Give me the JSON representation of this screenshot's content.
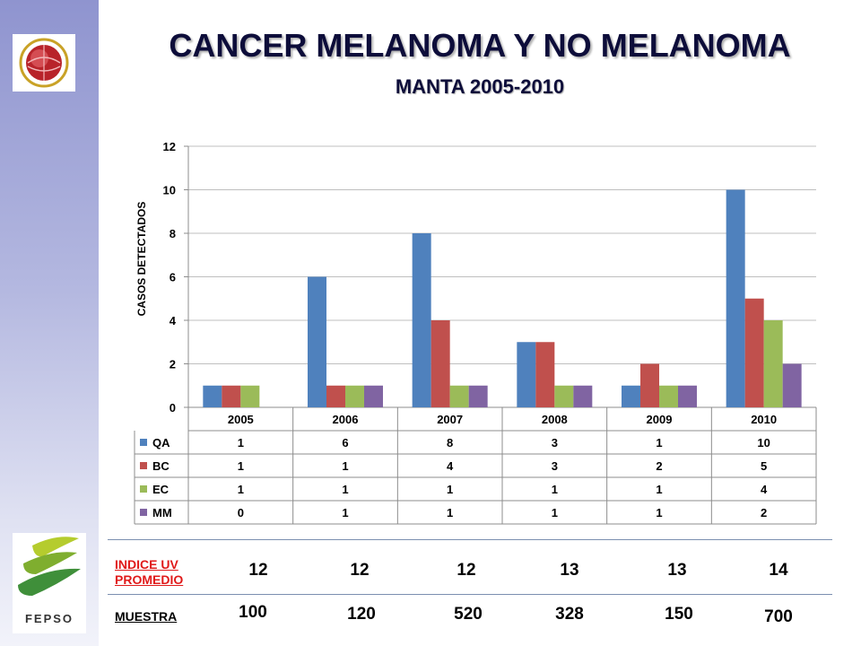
{
  "header": {
    "title": "CANCER MELANOMA Y NO MELANOMA",
    "subtitle": "MANTA 2005-2010"
  },
  "logos": {
    "bottom_text": "FEPSO"
  },
  "colors": {
    "QA": "#4f81bd",
    "BC": "#c0504d",
    "EC": "#9bbb59",
    "MM": "#8064a2",
    "title": "#0d0d3a",
    "index_label": "#e01a1a"
  },
  "chart_data": {
    "type": "bar",
    "title": "",
    "ylabel": "CASOS  DETECTADOS",
    "xlabel": "",
    "ylim": [
      0,
      12
    ],
    "yticks": [
      0,
      2,
      4,
      6,
      8,
      10,
      12
    ],
    "grid": true,
    "legend": "data-table",
    "categories": [
      "2005",
      "2006",
      "2007",
      "2008",
      "2009",
      "2010"
    ],
    "series": [
      {
        "name": "QA",
        "values": [
          1,
          6,
          8,
          3,
          1,
          10
        ]
      },
      {
        "name": "BC",
        "values": [
          1,
          1,
          4,
          3,
          2,
          5
        ]
      },
      {
        "name": "EC",
        "values": [
          1,
          1,
          1,
          1,
          1,
          4
        ]
      },
      {
        "name": "MM",
        "values": [
          0,
          1,
          1,
          1,
          1,
          2
        ]
      }
    ]
  },
  "extra_table": {
    "indice_label_1": "INDICE UV",
    "indice_label_2": "PROMEDIO",
    "indice_values": [
      "12",
      "12",
      "12",
      "13",
      "13",
      "14"
    ],
    "muestra_label": "MUESTRA",
    "muestra_values": [
      "100",
      "120",
      "520",
      "328",
      "150",
      "700"
    ]
  }
}
